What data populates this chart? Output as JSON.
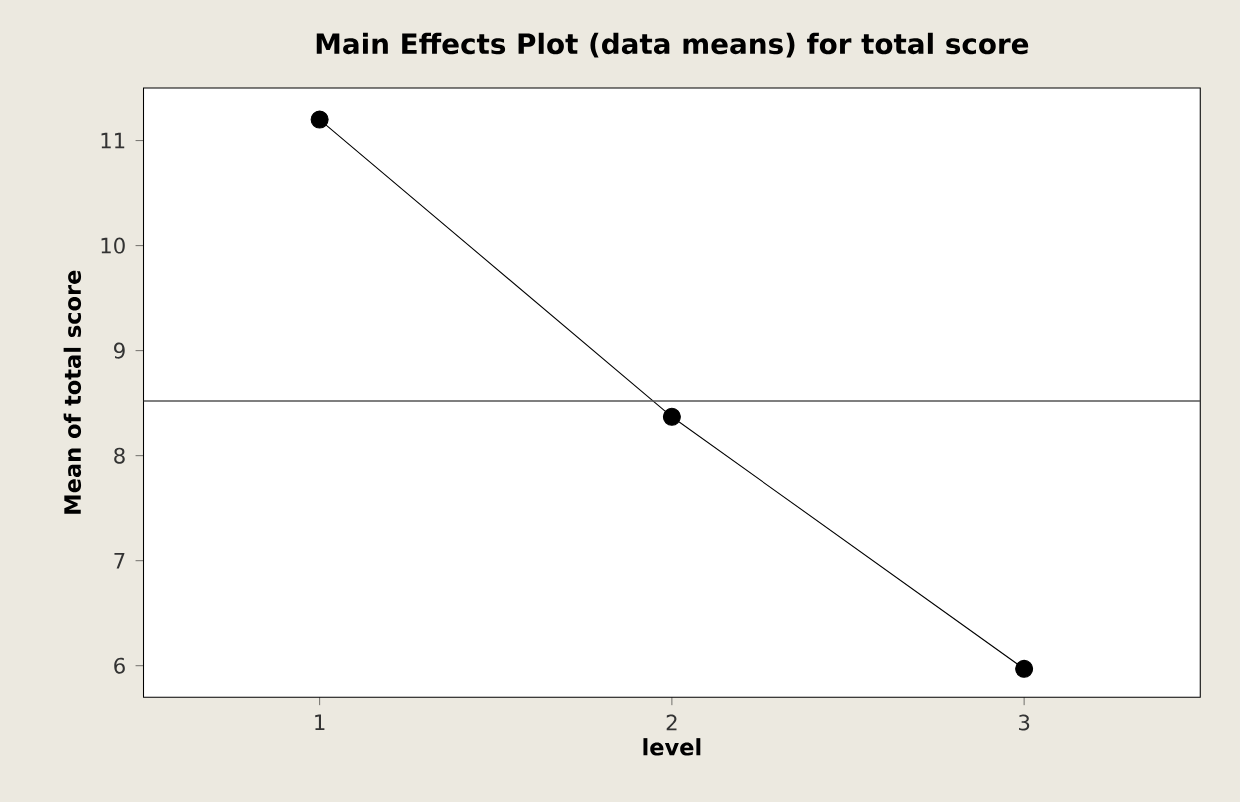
{
  "chart_data": {
    "type": "line",
    "title": "Main Effects Plot (data means) for total score",
    "xlabel": "level",
    "ylabel": "Mean of total score",
    "categories": [
      "1",
      "2",
      "3"
    ],
    "series": [
      {
        "color": "#000000",
        "values": [
          11.2,
          8.37,
          5.97
        ]
      }
    ],
    "ylim": [
      5.7,
      11.5
    ],
    "yticks": [
      6,
      7,
      8,
      9,
      10,
      11
    ],
    "ref_lines": [
      {
        "axis": "y",
        "value": 8.52,
        "color": "#555555"
      }
    ],
    "marker": "circle",
    "line_style": "solid"
  }
}
